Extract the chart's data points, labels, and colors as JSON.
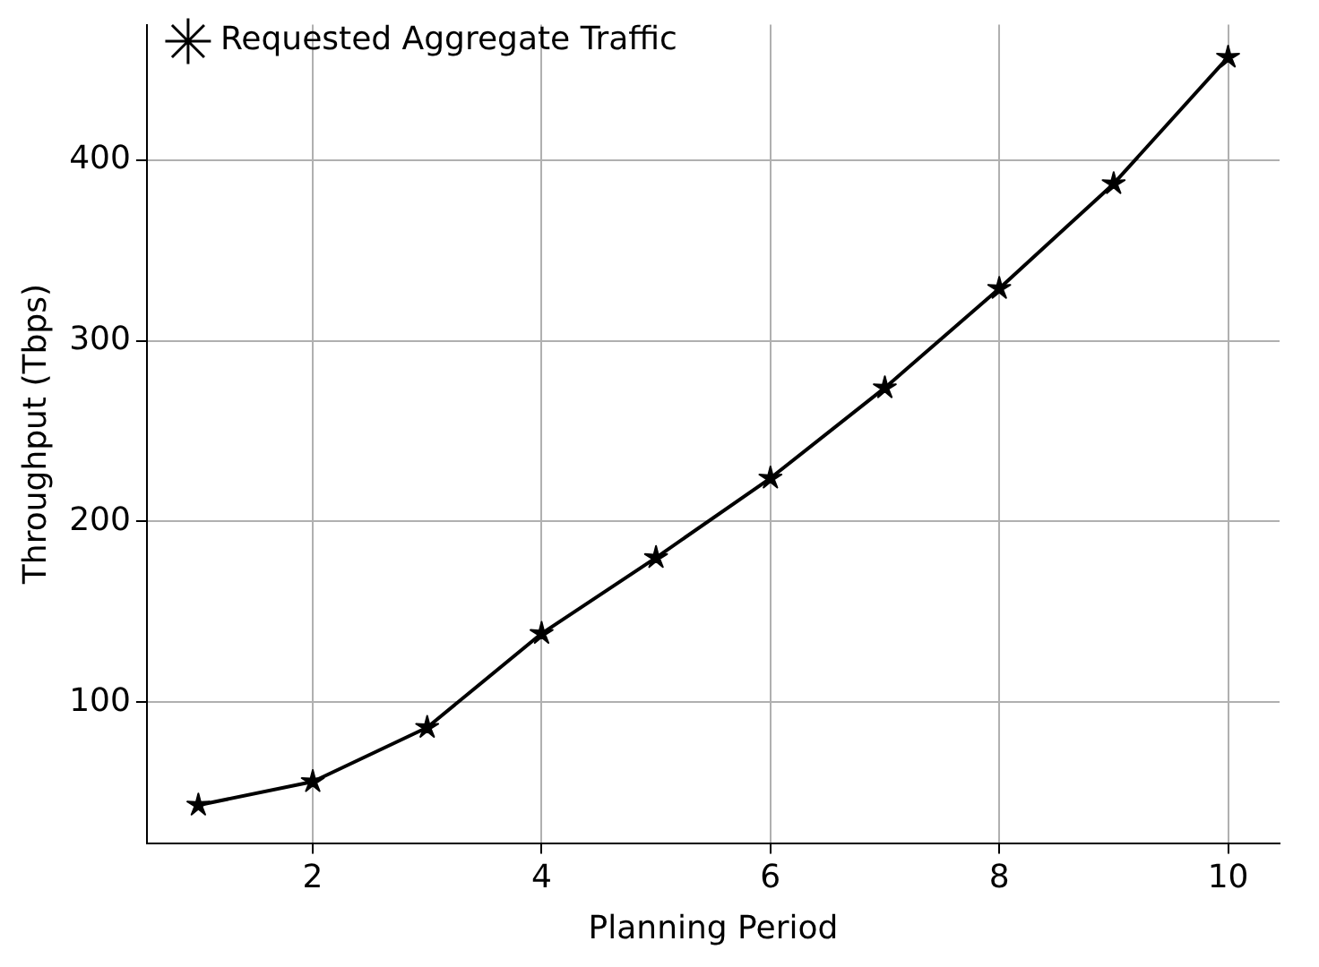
{
  "chart_data": {
    "type": "line",
    "xlabel": "Planning Period",
    "ylabel": "Throughput (Tbps)",
    "x": [
      1,
      2,
      3,
      4,
      5,
      6,
      7,
      8,
      9,
      10
    ],
    "series": [
      {
        "name": "Requested Aggregate Traffic",
        "color": "#000000",
        "values": [
          43,
          56,
          86,
          138,
          180,
          224,
          274,
          329,
          387,
          457
        ]
      }
    ],
    "xlim": [
      0.55,
      10.45
    ],
    "ylim": [
      22,
      475
    ],
    "xticks": [
      2,
      4,
      6,
      8,
      10
    ],
    "yticks": [
      100,
      200,
      300,
      400
    ],
    "grid": true,
    "legend": "top left",
    "marker": "star",
    "line_style": "solid"
  }
}
